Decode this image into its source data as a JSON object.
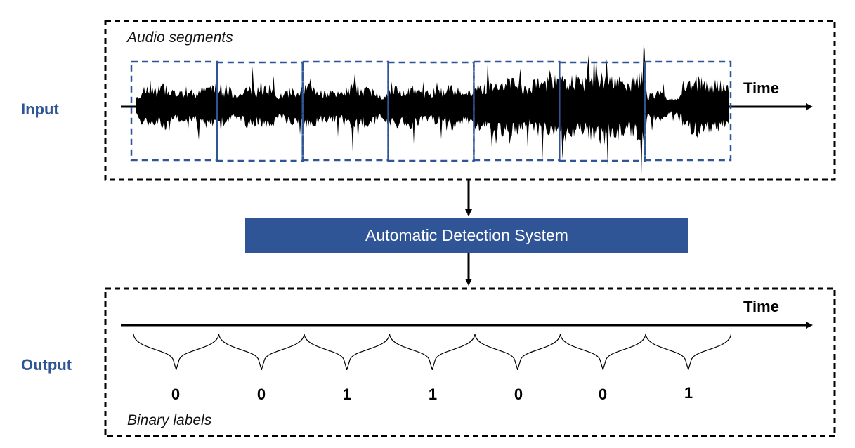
{
  "input": {
    "side_label": "Input",
    "caption": "Audio segments",
    "time_label": "Time",
    "segment_count": 7
  },
  "system": {
    "label": "Automatic Detection System"
  },
  "output": {
    "side_label": "Output",
    "caption": "Binary labels",
    "time_label": "Time",
    "labels": [
      "0",
      "0",
      "1",
      "1",
      "0",
      "0",
      "1"
    ]
  },
  "colors": {
    "accent": "#2f5597",
    "segment_border": "#2f5597",
    "waveform": "#000000"
  }
}
